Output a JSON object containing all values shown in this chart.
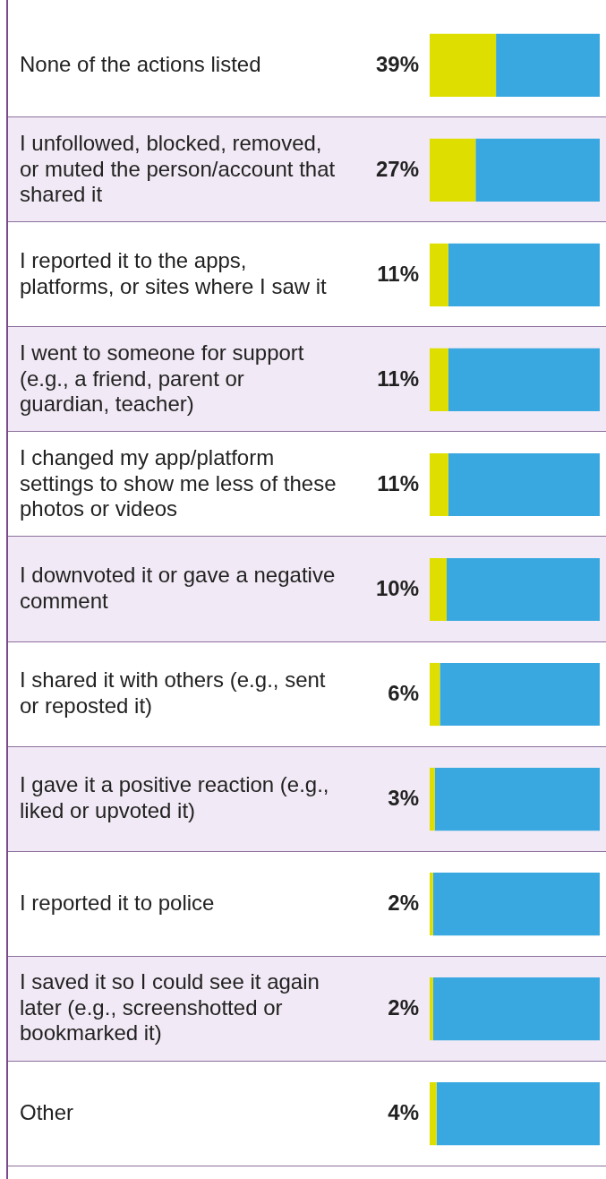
{
  "chart_data": {
    "type": "bar",
    "orientation": "horizontal",
    "stacked": true,
    "categories": [
      "None of the actions listed",
      "I unfollowed, blocked, removed, or muted the person/account that shared it",
      "I reported it to the apps, platforms, or sites where I saw it",
      "I went to someone for support (e.g., a friend, parent or guardian, teacher)",
      "I changed my app/platform settings to show me less of these photos or videos",
      "I downvoted it or gave a negative comment",
      "I shared it with others (e.g., sent or reposted it)",
      "I gave it a positive reaction (e.g., liked or upvoted it)",
      "I reported it to police",
      "I saved it so I could see it again later (e.g., screenshotted or bookmarked it)",
      "Other"
    ],
    "series": [
      {
        "color": "#dede00",
        "values": [
          39,
          27,
          11,
          11,
          11,
          10,
          6,
          3,
          2,
          2,
          4
        ],
        "value_labels": [
          "39%",
          "27%",
          "11%",
          "11%",
          "11%",
          "10%",
          "6%",
          "3%",
          "2%",
          "2%",
          "4%"
        ]
      },
      {
        "color": "#3aa8e0",
        "values": [
          61,
          73,
          89,
          89,
          89,
          90,
          94,
          97,
          98,
          98,
          96
        ]
      }
    ],
    "xlim": [
      0,
      100
    ],
    "tick_labels": "y",
    "legend": false
  }
}
